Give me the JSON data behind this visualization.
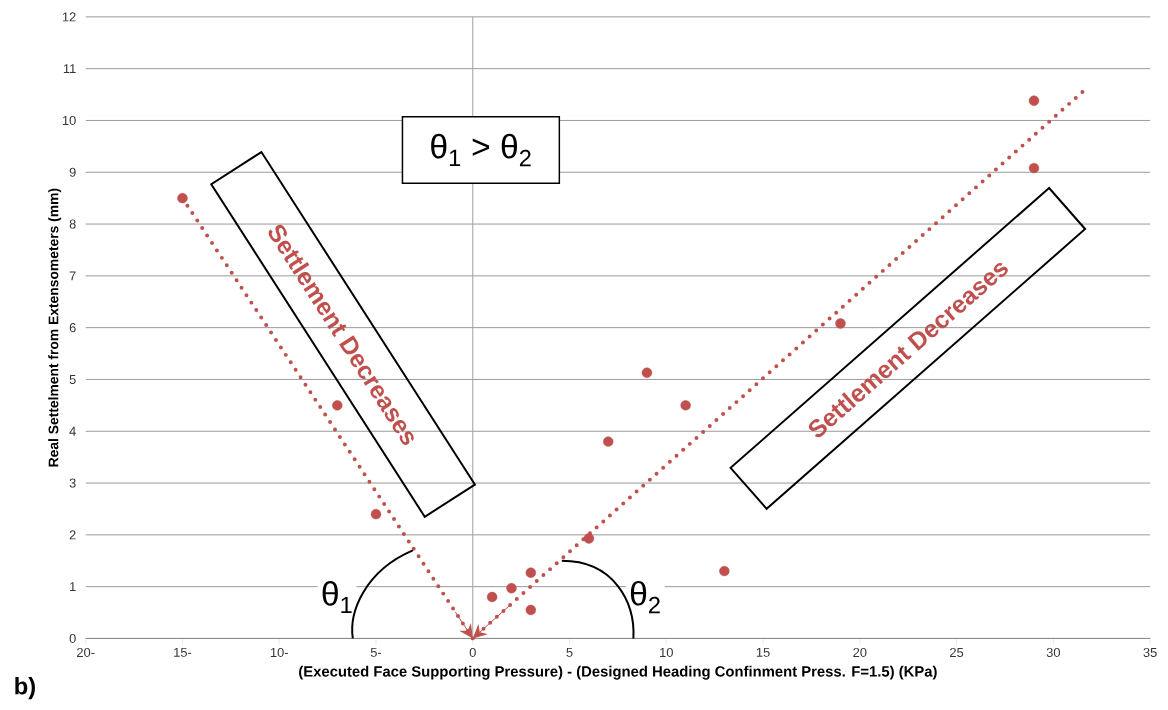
{
  "chart_data": {
    "type": "scatter",
    "xlabel": "(Executed Face Supporting Pressure) - (Designed Heading Confinment Press. F=1.5) (KPa)",
    "ylabel": "Real Settelment from Extensometers (mm)",
    "x": [
      -15,
      -7,
      -5,
      1,
      2,
      3,
      3,
      6,
      7,
      9,
      11,
      13,
      19,
      29,
      29
    ],
    "series": [
      {
        "color": "#c0504d",
        "marker": "circle",
        "values": [
          8.5,
          4.5,
          2.4,
          0.8,
          0.97,
          1.27,
          0.55,
          1.93,
          3.8,
          5.13,
          4.5,
          1.3,
          6.08,
          10.38,
          9.08
        ]
      }
    ],
    "xlim": [
      -20,
      35
    ],
    "ylim": [
      0,
      12
    ],
    "xticks": [
      {
        "value": -20,
        "label": "20-"
      },
      {
        "value": -15,
        "label": "15-"
      },
      {
        "value": -10,
        "label": "10-"
      },
      {
        "value": -5,
        "label": "5-"
      },
      0,
      5,
      10,
      15,
      20,
      25,
      30,
      35
    ],
    "yticks": [
      0,
      1,
      2,
      3,
      4,
      5,
      6,
      7,
      8,
      9,
      10,
      11,
      12
    ],
    "grid": "y",
    "ref_lines": [
      {
        "axis": "x",
        "value": 0,
        "color": "#a0a0a0"
      }
    ],
    "annotations": [
      "θ$_{1}$ > θ$_{2}$",
      "Settlement Decreases",
      "Settlement Decreases",
      "θ$_{1}$",
      "θ$_{2}$",
      "b)"
    ]
  }
}
